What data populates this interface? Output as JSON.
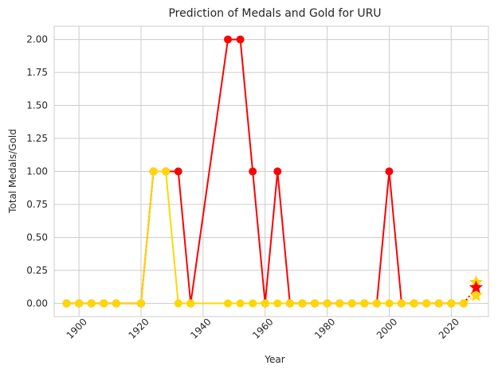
{
  "chart_data": {
    "type": "line",
    "title": "Prediction of Medals and Gold for URU",
    "xlabel": "Year",
    "ylabel": "Total Medals/Gold",
    "xlim": [
      1892,
      2032
    ],
    "ylim": [
      -0.1,
      2.1
    ],
    "xticks": [
      1900,
      1920,
      1940,
      1960,
      1980,
      2000,
      2020
    ],
    "xtick_labels": [
      "1900",
      "1920",
      "1940",
      "1960",
      "1980",
      "2000",
      "2020"
    ],
    "yticks": [
      0,
      0.25,
      0.5,
      0.75,
      1,
      1.25,
      1.5,
      1.75,
      2
    ],
    "ytick_labels": [
      "0.00",
      "0.25",
      "0.50",
      "0.75",
      "1.00",
      "1.25",
      "1.50",
      "1.75",
      "2.00"
    ],
    "grid": true,
    "x": [
      1896,
      1900,
      1904,
      1908,
      1912,
      1920,
      1924,
      1928,
      1932,
      1936,
      1948,
      1952,
      1956,
      1960,
      1964,
      1968,
      1972,
      1976,
      1980,
      1984,
      1988,
      1992,
      1996,
      2000,
      2004,
      2008,
      2012,
      2016,
      2020,
      2024
    ],
    "series": [
      {
        "key": "total",
        "color": "#ff0000",
        "values": [
          0,
          0,
          0,
          0,
          0,
          0,
          1,
          1,
          1,
          0,
          2,
          2,
          1,
          0,
          1,
          0,
          0,
          0,
          0,
          0,
          0,
          0,
          0,
          1,
          0,
          0,
          0,
          0,
          0,
          0
        ],
        "prediction": {
          "x": 2028,
          "y": 0.12
        }
      },
      {
        "key": "gold",
        "color": "#ffd700",
        "values": [
          0,
          0,
          0,
          0,
          0,
          0,
          1,
          1,
          0,
          0,
          0,
          0,
          0,
          0,
          0,
          0,
          0,
          0,
          0,
          0,
          0,
          0,
          0,
          0,
          0,
          0,
          0,
          0,
          0,
          0
        ],
        "prediction": {
          "x": 2028,
          "y": 0.06,
          "x2": 2028,
          "y2": 0.16
        }
      }
    ]
  }
}
